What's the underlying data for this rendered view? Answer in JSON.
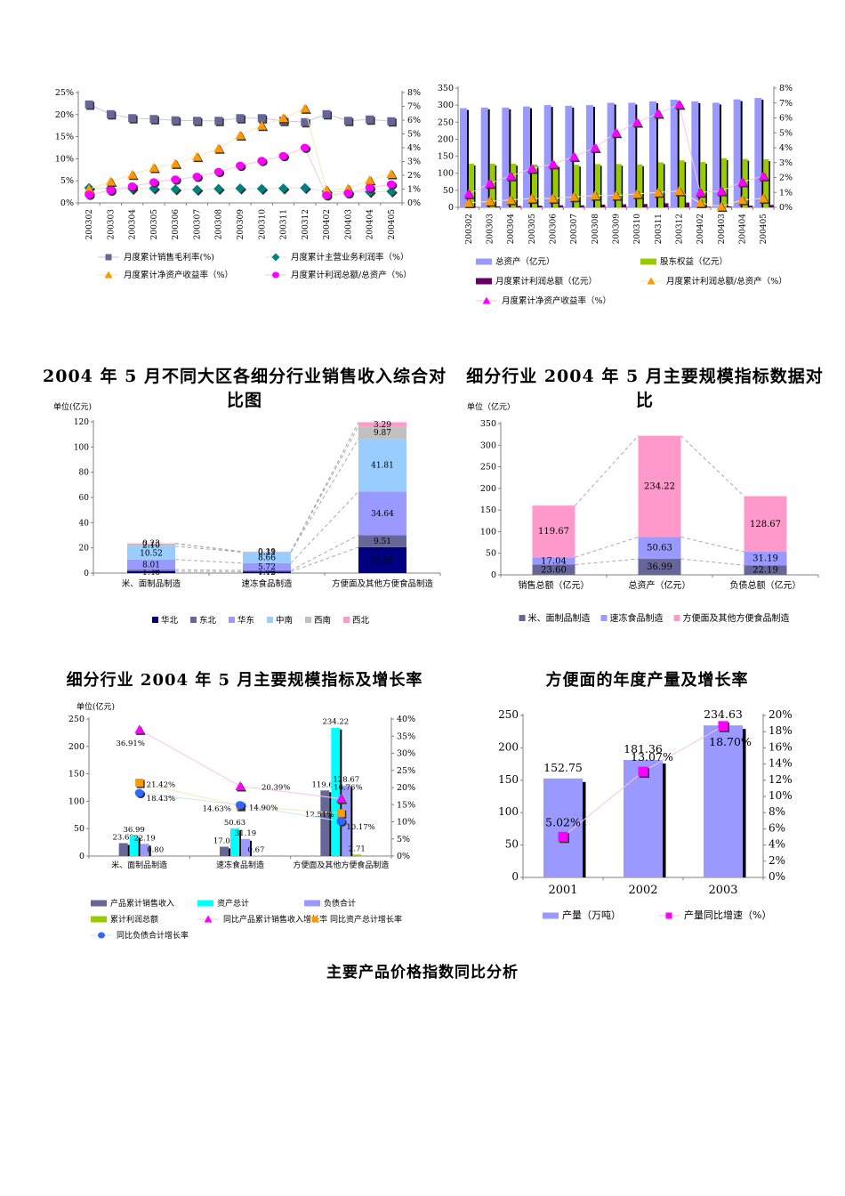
{
  "page": {
    "titles": {
      "mid_left": "2004 年 5 月不同大区各细分行业销售收入综合对比图",
      "mid_right": "细分行业 2004 年 5 月主要规模指标数据对比",
      "bottom_left": "细分行业 2004 年 5 月主要规模指标及增长率",
      "bottom_right": "方便面的年度产量及增长率",
      "footer": "主要产品价格指数同比分析"
    }
  },
  "chart_data": [
    {
      "id": "monthly-profit-ratios",
      "type": "line",
      "categories": [
        "200302",
        "200303",
        "200304",
        "200305",
        "200306",
        "200307",
        "200308",
        "200309",
        "200310",
        "200311",
        "200312",
        "200402",
        "200403",
        "200404",
        "200405"
      ],
      "left_axis": {
        "min": 0,
        "max": 25,
        "step": 5,
        "suffix": "%"
      },
      "right_axis": {
        "min": 0,
        "max": 8,
        "step": 1,
        "suffix": "%"
      },
      "series": [
        {
          "name": "月度累计销售毛利率(%)",
          "axis": "left",
          "marker": "square",
          "color": "#666699",
          "line_color": "#c6c6e3",
          "values": [
            22.3,
            20.1,
            19.2,
            19.0,
            18.7,
            18.6,
            18.6,
            19.2,
            19.2,
            18.6,
            18.3,
            20.1,
            18.6,
            18.9,
            18.5
          ]
        },
        {
          "name": "月度累计主营业务利润率（%）",
          "axis": "left",
          "marker": "diamond",
          "color": "#008080",
          "line_color": "#d9ecd0",
          "values": [
            3.4,
            3.3,
            3.2,
            3.3,
            3.1,
            3.0,
            3.2,
            3.3,
            3.2,
            3.3,
            3.4,
            2.6,
            2.4,
            2.5,
            2.6
          ]
        },
        {
          "name": "月度累计净资产收益率（%）",
          "axis": "right",
          "marker": "triangle",
          "color": "#FF9900",
          "line_color": "#f5e9b8",
          "values": [
            1.0,
            1.55,
            2.05,
            2.55,
            2.85,
            3.35,
            3.95,
            4.9,
            5.6,
            6.15,
            6.85,
            0.95,
            1.05,
            1.65,
            2.1
          ]
        },
        {
          "name": "月度累计利润总额/总资产（%）",
          "axis": "right",
          "marker": "circle",
          "color": "#FF00FF",
          "line_color": "#f7c6e2",
          "values": [
            0.6,
            0.9,
            1.2,
            1.5,
            1.7,
            1.9,
            2.25,
            2.7,
            3.05,
            3.4,
            4.0,
            0.55,
            0.7,
            1.1,
            1.35
          ]
        }
      ]
    },
    {
      "id": "assets-equity-profit",
      "type": "bar+line",
      "categories": [
        "200302",
        "200303",
        "200304",
        "200305",
        "200306",
        "200307",
        "200308",
        "200309",
        "200310",
        "200311",
        "200312",
        "200402",
        "200403",
        "200404",
        "200405"
      ],
      "left_axis": {
        "min": 0,
        "max": 350,
        "step": 50,
        "suffix": ""
      },
      "right_axis": {
        "min": 0,
        "max": 8,
        "step": 1,
        "suffix": "%"
      },
      "bar_series": [
        {
          "name": "总资产（亿元）",
          "color": "#9999FF",
          "values": [
            291,
            293,
            293,
            296,
            300,
            298,
            300,
            307,
            307,
            311,
            316,
            311,
            307,
            317,
            321
          ]
        },
        {
          "name": "股东权益（亿元）",
          "color": "#99CC00",
          "values": [
            128,
            128,
            128,
            126,
            124,
            125,
            127,
            127,
            126,
            132,
            138,
            133,
            144,
            142,
            141
          ]
        },
        {
          "name": "月度累计利润总额（亿元）",
          "color": "#660066",
          "values": [
            1,
            3,
            4,
            5,
            6,
            6,
            8,
            9,
            10,
            12,
            14,
            2,
            3,
            5,
            7
          ]
        }
      ],
      "line_series": [
        {
          "name": "月度累计利润总额/总资产（%）",
          "marker": "triangle",
          "color": "#FF9900",
          "line_color": "#f5e9b8",
          "values": [
            0.3,
            0.4,
            0.5,
            0.6,
            0.6,
            0.7,
            0.8,
            0.8,
            0.9,
            1.0,
            1.1,
            0.3,
            0.05,
            0.5,
            0.6
          ]
        },
        {
          "name": "月度累计净资产收益率（%）",
          "marker": "triangle",
          "color": "#FF00FF",
          "line_color": "#f7c6e2",
          "values": [
            0.9,
            1.6,
            2.1,
            2.6,
            2.9,
            3.4,
            4.0,
            5.0,
            5.7,
            6.3,
            6.9,
            1.0,
            1.1,
            1.7,
            2.1
          ]
        }
      ]
    },
    {
      "id": "regional-sales-stack",
      "type": "stacked-bar",
      "unit_label": "单位(亿元)",
      "categories": [
        "米、面制品制造",
        "速冻食品制造",
        "方便面及其他方便食品制造"
      ],
      "left_axis": {
        "min": 0,
        "max": 120,
        "step": 20,
        "suffix": ""
      },
      "series": [
        {
          "name": "华北",
          "color": "#000080",
          "values": [
            1.4,
            1.12,
            20.55
          ]
        },
        {
          "name": "东北",
          "color": "#666699",
          "values": [
            1.34,
            1.04,
            9.51
          ]
        },
        {
          "name": "华东",
          "color": "#9999FF",
          "values": [
            8.01,
            5.72,
            34.64
          ]
        },
        {
          "name": "中南",
          "color": "#99CCFF",
          "values": [
            10.52,
            8.66,
            41.81
          ]
        },
        {
          "name": "西南",
          "color": "#C0C0C0",
          "values": [
            2.1,
            0.31,
            9.87
          ]
        },
        {
          "name": "西北",
          "color": "#FF99CC",
          "values": [
            0.23,
            0.19,
            3.29
          ]
        }
      ]
    },
    {
      "id": "scale-indicators-stack",
      "type": "stacked-bar",
      "unit_label": "单位（亿元）",
      "categories": [
        "销售总额（亿元）",
        "总资产（亿元）",
        "负债总额（亿元）"
      ],
      "left_axis": {
        "min": 0,
        "max": 350,
        "step": 50,
        "suffix": ""
      },
      "series": [
        {
          "name": "米、面制品制造",
          "color": "#666699",
          "values": [
            23.6,
            36.99,
            22.19
          ]
        },
        {
          "name": "速冻食品制造",
          "color": "#9999FF",
          "values": [
            17.04,
            50.63,
            31.19
          ]
        },
        {
          "name": "方便面及其他方便食品制造",
          "color": "#FF99CC",
          "values": [
            119.67,
            234.22,
            128.67
          ]
        }
      ]
    },
    {
      "id": "scale-and-growth",
      "type": "bar+line",
      "unit_label": "单位(亿元)",
      "categories": [
        "米、面制品制造",
        "速冻食品制造",
        "方便面及其他方便食品制造"
      ],
      "left_axis": {
        "min": 0,
        "max": 250,
        "step": 50,
        "suffix": ""
      },
      "right_axis": {
        "min": 0,
        "max": 40,
        "step": 5,
        "suffix": "%"
      },
      "bar_series": [
        {
          "name": "产品累计销售收入",
          "color": "#666699",
          "values": [
            23.6,
            17.04,
            119.67
          ]
        },
        {
          "name": "资产总计",
          "color": "#00FFFF",
          "values": [
            36.99,
            50.63,
            234.22
          ]
        },
        {
          "name": "负债合计",
          "color": "#9999FF",
          "values": [
            22.19,
            31.19,
            128.67
          ]
        },
        {
          "name": "累计利润总额",
          "color": "#99CC00",
          "values": [
            0.8,
            0.67,
            2.71
          ]
        }
      ],
      "line_series": [
        {
          "name": "同比产品累计销售收入增长率",
          "marker": "triangle",
          "color": "#FF00FF",
          "line_color": "#f7c6e2",
          "values": [
            36.91,
            20.39,
            16.76
          ],
          "labels": [
            "36.91%",
            "20.39%",
            "16.76%"
          ]
        },
        {
          "name": "同比资产总计增长率",
          "marker": "square",
          "color": "#FF9900",
          "line_color": "#f5e9b8",
          "values": [
            21.42,
            14.63,
            12.51
          ],
          "labels": [
            "21.42%",
            "14.63%",
            "12.51%"
          ]
        },
        {
          "name": "同比负债合计增长率",
          "marker": "circle",
          "color": "#3366FF",
          "line_color": "#cce4f5",
          "values": [
            18.43,
            14.9,
            10.17
          ],
          "labels": [
            "18.43%",
            "14.90%",
            "10.17%"
          ]
        }
      ]
    },
    {
      "id": "instant-noodle-output",
      "type": "bar+line",
      "categories": [
        "2001",
        "2002",
        "2003"
      ],
      "left_axis": {
        "min": 0,
        "max": 250,
        "step": 50,
        "suffix": ""
      },
      "right_axis": {
        "min": 0,
        "max": 20,
        "step": 2,
        "suffix": "%"
      },
      "bar_series": [
        {
          "name": "产量（万吨）",
          "color": "#9999FF",
          "values": [
            152.75,
            181.36,
            234.63
          ],
          "labels": [
            "152.75",
            "181.36",
            "234.63"
          ]
        }
      ],
      "line_series": [
        {
          "name": "产量同比增速（%）",
          "marker": "square",
          "color": "#FF00FF",
          "line_color": "#f7c6e2",
          "values": [
            5.02,
            13.07,
            18.7
          ],
          "labels": [
            "5.02%",
            "13.07%",
            "18.70%"
          ]
        }
      ]
    }
  ]
}
